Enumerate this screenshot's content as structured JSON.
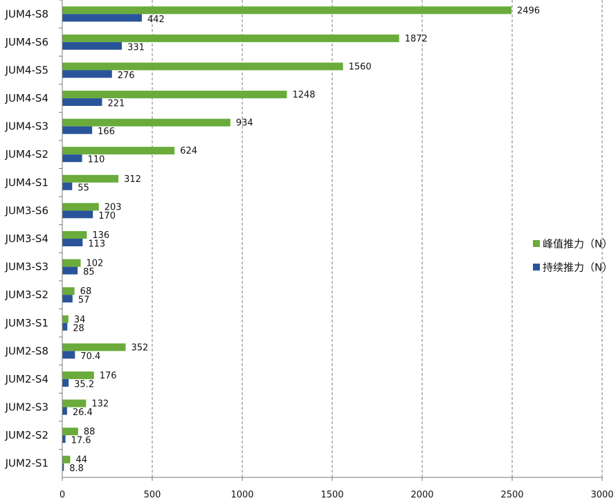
{
  "chart_data": {
    "type": "bar",
    "orientation": "horizontal",
    "categories": [
      "JUM4-S8",
      "JUM4-S6",
      "JUM4-S5",
      "JUM4-S4",
      "JUM4-S3",
      "JUM4-S2",
      "JUM4-S1",
      "JUM3-S6",
      "JUM3-S4",
      "JUM3-S3",
      "JUM3-S2",
      "JUM3-S1",
      "JUM2-S8",
      "JUM2-S4",
      "JUM2-S3",
      "JUM2-S2",
      "JUM2-S1"
    ],
    "series": [
      {
        "name": "峰值推力（N）",
        "color": "#6aab3c",
        "values": [
          2496,
          1872,
          1560,
          1248,
          934,
          624,
          312,
          203,
          136,
          102,
          68,
          34,
          352,
          176,
          132,
          88,
          44
        ],
        "labels": [
          "2496",
          "1872",
          "1560",
          "1248",
          "934",
          "624",
          "312",
          "203",
          "136",
          "102",
          "68",
          "34",
          "352",
          "176",
          "132",
          "88",
          "44"
        ]
      },
      {
        "name": "持续推力（N）",
        "color": "#2a5499",
        "values": [
          442,
          331,
          276,
          221,
          166,
          110,
          55,
          170,
          113,
          85,
          57,
          28,
          70.4,
          35.2,
          26.4,
          17.6,
          8.8
        ],
        "labels": [
          "442",
          "331",
          "276",
          "221",
          "166",
          "110",
          "55",
          "170",
          "113",
          "85",
          "57",
          "28",
          "70.4",
          "35.2",
          "26.4",
          "17.6",
          "8.8"
        ]
      }
    ],
    "xlim": [
      0,
      3000
    ],
    "xticks": [
      "0",
      "500",
      "1000",
      "1500",
      "2000",
      "2500",
      "3000"
    ],
    "title": "",
    "xlabel": "",
    "ylabel": "",
    "grid": "vertical dashed",
    "legend_position": "right"
  }
}
